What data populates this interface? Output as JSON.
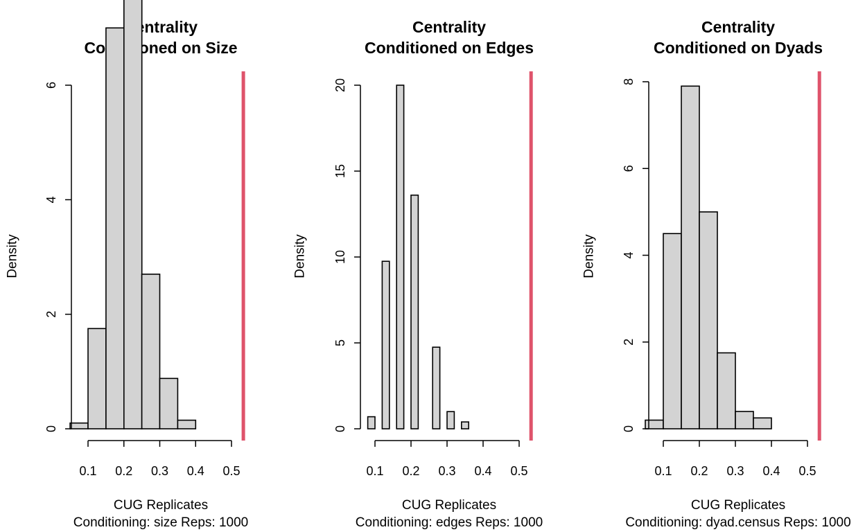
{
  "chart_data": [
    {
      "type": "bar",
      "title": "Centrality",
      "subtitle": "Conditioned on Size",
      "xlabel": "CUG Replicates",
      "caption": "Conditioning: size Reps: 1000",
      "ylabel": "Density",
      "xlim": [
        0.05,
        0.53
      ],
      "ylim": [
        0,
        7.7
      ],
      "x_ticks": [
        0.1,
        0.2,
        0.3,
        0.4,
        0.5
      ],
      "x_tick_labels": [
        "0.1",
        "0.2",
        "0.3",
        "0.4",
        "0.5"
      ],
      "y_ticks": [
        0,
        2,
        4,
        6
      ],
      "y_tick_labels": [
        "0",
        "2",
        "4",
        "6"
      ],
      "bins": [
        {
          "x0": 0.05,
          "x1": 0.1,
          "density": 0.1
        },
        {
          "x0": 0.1,
          "x1": 0.15,
          "density": 1.75
        },
        {
          "x0": 0.15,
          "x1": 0.2,
          "density": 7.0
        },
        {
          "x0": 0.2,
          "x1": 0.25,
          "density": 7.5
        },
        {
          "x0": 0.25,
          "x1": 0.3,
          "density": 2.7
        },
        {
          "x0": 0.3,
          "x1": 0.35,
          "density": 0.88
        },
        {
          "x0": 0.35,
          "x1": 0.4,
          "density": 0.15
        }
      ],
      "observed": 0.533,
      "observed_color": "#df536b",
      "bar_color": "#d3d3d3"
    },
    {
      "type": "bar",
      "title": "Centrality",
      "subtitle": "Conditioned on Edges",
      "xlabel": "CUG Replicates",
      "caption": "Conditioning: edges Reps: 1000",
      "ylabel": "Density",
      "xlim": [
        0.075,
        0.53
      ],
      "ylim": [
        0,
        20.6
      ],
      "x_ticks": [
        0.1,
        0.2,
        0.3,
        0.4,
        0.5
      ],
      "x_tick_labels": [
        "0.1",
        "0.2",
        "0.3",
        "0.4",
        "0.5"
      ],
      "y_ticks": [
        0,
        5,
        10,
        15,
        20
      ],
      "y_tick_labels": [
        "0",
        "5",
        "10",
        "15",
        "20"
      ],
      "bins": [
        {
          "x0": 0.08,
          "x1": 0.1,
          "density": 0.7
        },
        {
          "x0": 0.1,
          "x1": 0.12,
          "density": 0
        },
        {
          "x0": 0.12,
          "x1": 0.14,
          "density": 9.75
        },
        {
          "x0": 0.14,
          "x1": 0.16,
          "density": 0
        },
        {
          "x0": 0.16,
          "x1": 0.18,
          "density": 20.0
        },
        {
          "x0": 0.18,
          "x1": 0.2,
          "density": 0
        },
        {
          "x0": 0.2,
          "x1": 0.22,
          "density": 13.6
        },
        {
          "x0": 0.22,
          "x1": 0.24,
          "density": 0
        },
        {
          "x0": 0.24,
          "x1": 0.26,
          "density": 0
        },
        {
          "x0": 0.26,
          "x1": 0.28,
          "density": 4.75
        },
        {
          "x0": 0.28,
          "x1": 0.3,
          "density": 0
        },
        {
          "x0": 0.3,
          "x1": 0.32,
          "density": 1.0
        },
        {
          "x0": 0.32,
          "x1": 0.34,
          "density": 0
        },
        {
          "x0": 0.34,
          "x1": 0.36,
          "density": 0.4
        }
      ],
      "observed": 0.533,
      "observed_color": "#df536b",
      "bar_color": "#d3d3d3"
    },
    {
      "type": "bar",
      "title": "Centrality",
      "subtitle": "Conditioned on Dyads",
      "xlabel": "CUG Replicates",
      "caption": "Conditioning: dyad.census Reps: 1000",
      "ylabel": "Density",
      "xlim": [
        0.05,
        0.53
      ],
      "ylim": [
        0,
        8.2
      ],
      "x_ticks": [
        0.1,
        0.2,
        0.3,
        0.4,
        0.5
      ],
      "x_tick_labels": [
        "0.1",
        "0.2",
        "0.3",
        "0.4",
        "0.5"
      ],
      "y_ticks": [
        0,
        2,
        4,
        6,
        8
      ],
      "y_tick_labels": [
        "0",
        "2",
        "4",
        "6",
        "8"
      ],
      "bins": [
        {
          "x0": 0.05,
          "x1": 0.1,
          "density": 0.2
        },
        {
          "x0": 0.1,
          "x1": 0.15,
          "density": 4.5
        },
        {
          "x0": 0.15,
          "x1": 0.2,
          "density": 7.9
        },
        {
          "x0": 0.2,
          "x1": 0.25,
          "density": 5.0
        },
        {
          "x0": 0.25,
          "x1": 0.3,
          "density": 1.75
        },
        {
          "x0": 0.3,
          "x1": 0.35,
          "density": 0.4
        },
        {
          "x0": 0.35,
          "x1": 0.4,
          "density": 0.25
        }
      ],
      "observed": 0.533,
      "observed_color": "#df536b",
      "bar_color": "#d3d3d3"
    }
  ]
}
